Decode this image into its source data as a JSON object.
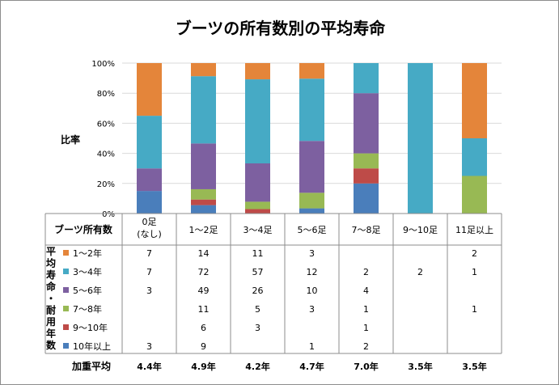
{
  "chart_data": {
    "type": "bar",
    "stacked": "percent",
    "title": "ブーツの所有数別の平均寿命",
    "ylabel": "比率",
    "ylim": [
      0,
      100
    ],
    "y_ticks": [
      "0%",
      "20%",
      "40%",
      "60%",
      "80%",
      "100%"
    ],
    "categories": [
      "0足\n(なし)",
      "1〜2足",
      "3〜4足",
      "5〜6足",
      "7〜8足",
      "9〜10足",
      "11足以上"
    ],
    "row_header_label": "ブーツ所有数",
    "legend_group_label": "平均寿命・耐用年数",
    "series": [
      {
        "name": "10年以上",
        "color": "#4a7ebb",
        "values": [
          "3",
          "9",
          "",
          "1",
          "2",
          "",
          ""
        ]
      },
      {
        "name": "9〜10年",
        "color": "#be4b48",
        "values": [
          "",
          "6",
          "3",
          "",
          "1",
          "",
          ""
        ]
      },
      {
        "name": "7〜8年",
        "color": "#98b954",
        "values": [
          "",
          "11",
          "5",
          "3",
          "1",
          "",
          "1"
        ]
      },
      {
        "name": "5〜6年",
        "color": "#7d60a0",
        "values": [
          "3",
          "49",
          "26",
          "10",
          "4",
          "",
          ""
        ]
      },
      {
        "name": "3〜4年",
        "color": "#46aac5",
        "values": [
          "7",
          "72",
          "57",
          "12",
          "2",
          "2",
          "1"
        ]
      },
      {
        "name": "1〜2年",
        "color": "#e4853a",
        "values": [
          "7",
          "14",
          "11",
          "3",
          "",
          "",
          "2"
        ]
      }
    ],
    "footer_label": "加重平均",
    "weighted_average": [
      "4.4年",
      "4.9年",
      "4.2年",
      "4.7年",
      "7.0年",
      "3.5年",
      "3.5年"
    ]
  }
}
